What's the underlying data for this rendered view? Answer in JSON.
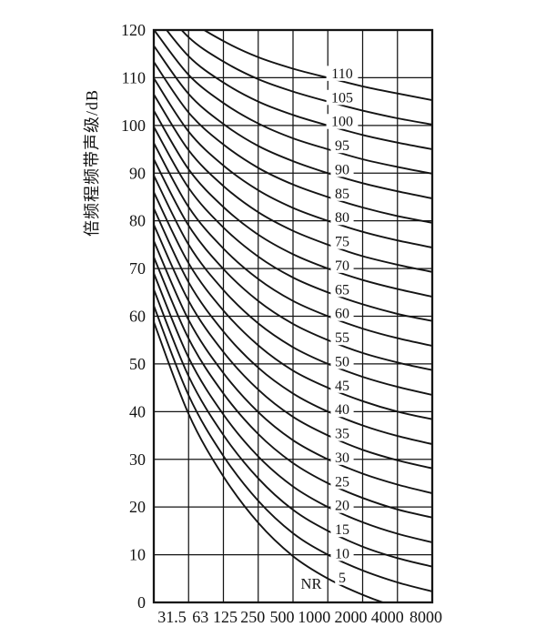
{
  "figure": {
    "background": "#ffffff",
    "ink_color": "#141414"
  },
  "chart_data": {
    "type": "line",
    "title": "",
    "ylabel": "倍频程频带声级/dB",
    "xlabel": "",
    "curve_family": "NR (noise rating) curves",
    "nr_prefix_label": "NR",
    "x_values_hz": [
      31.5,
      63,
      125,
      250,
      500,
      1000,
      2000,
      4000,
      8000
    ],
    "x_tick_labels": [
      "31.5",
      "63",
      "125",
      "250",
      "500",
      "1000",
      "2000",
      "4000",
      "8000"
    ],
    "y_ticks": [
      "0",
      "10",
      "20",
      "30",
      "40",
      "50",
      "60",
      "70",
      "80",
      "90",
      "100",
      "110",
      "120"
    ],
    "ylim": [
      0,
      120
    ],
    "grid": true,
    "legend_position": "labels-on-curves (between 1000 and 2000 Hz)",
    "series": [
      {
        "name": "NR 5",
        "label": "5",
        "values": [
          58.8,
          39.5,
          26.4,
          16.7,
          9.7,
          5.0,
          1.6,
          -1.0,
          -2.9
        ]
      },
      {
        "name": "NR 10",
        "label": "10",
        "values": [
          62.2,
          43.4,
          30.7,
          21.3,
          14.5,
          10.0,
          6.7,
          4.2,
          2.3
        ]
      },
      {
        "name": "NR 15",
        "label": "15",
        "values": [
          65.6,
          47.4,
          35.1,
          26.0,
          19.4,
          15.0,
          11.7,
          9.3,
          7.5
        ]
      },
      {
        "name": "NR 20",
        "label": "20",
        "values": [
          69.0,
          51.3,
          39.4,
          30.6,
          24.3,
          20.0,
          16.8,
          14.4,
          12.6
        ]
      },
      {
        "name": "NR 25",
        "label": "25",
        "values": [
          72.4,
          55.3,
          43.8,
          35.3,
          29.2,
          25.0,
          21.9,
          19.5,
          17.8
        ]
      },
      {
        "name": "NR 30",
        "label": "30",
        "values": [
          75.8,
          59.2,
          48.1,
          39.9,
          34.0,
          30.0,
          27.0,
          24.7,
          22.9
        ]
      },
      {
        "name": "NR 35",
        "label": "35",
        "values": [
          79.2,
          63.2,
          52.5,
          44.6,
          38.9,
          35.0,
          32.0,
          29.8,
          28.1
        ]
      },
      {
        "name": "NR 40",
        "label": "40",
        "values": [
          82.6,
          67.1,
          56.8,
          49.2,
          43.8,
          40.0,
          37.1,
          34.9,
          33.2
        ]
      },
      {
        "name": "NR 45",
        "label": "45",
        "values": [
          86.0,
          71.1,
          61.2,
          53.9,
          48.6,
          45.0,
          42.2,
          40.0,
          38.4
        ]
      },
      {
        "name": "NR 50",
        "label": "50",
        "values": [
          89.5,
          75.0,
          65.5,
          58.5,
          53.5,
          50.0,
          47.3,
          45.2,
          43.5
        ]
      },
      {
        "name": "NR 55",
        "label": "55",
        "values": [
          92.9,
          79.0,
          69.9,
          63.2,
          58.4,
          55.0,
          52.3,
          50.3,
          48.7
        ]
      },
      {
        "name": "NR 60",
        "label": "60",
        "values": [
          96.3,
          82.9,
          74.2,
          67.8,
          63.2,
          60.0,
          57.4,
          55.4,
          53.8
        ]
      },
      {
        "name": "NR 65",
        "label": "65",
        "values": [
          99.7,
          86.9,
          78.6,
          72.5,
          68.1,
          65.0,
          62.5,
          60.5,
          59.0
        ]
      },
      {
        "name": "NR 70",
        "label": "70",
        "values": [
          103.1,
          90.8,
          82.9,
          77.1,
          73.0,
          70.0,
          67.6,
          65.7,
          64.1
        ]
      },
      {
        "name": "NR 75",
        "label": "75",
        "values": [
          106.5,
          94.8,
          87.3,
          81.8,
          77.9,
          75.0,
          72.6,
          70.8,
          69.3
        ]
      },
      {
        "name": "NR 80",
        "label": "80",
        "values": [
          109.9,
          98.7,
          91.6,
          86.4,
          82.7,
          80.0,
          77.7,
          75.9,
          74.4
        ]
      },
      {
        "name": "NR 85",
        "label": "85",
        "values": [
          113.3,
          102.7,
          96.0,
          91.1,
          87.6,
          85.0,
          82.8,
          81.0,
          79.6
        ]
      },
      {
        "name": "NR 90",
        "label": "90",
        "values": [
          116.7,
          106.6,
          100.3,
          95.7,
          92.5,
          90.0,
          87.9,
          86.2,
          84.7
        ]
      },
      {
        "name": "NR 95",
        "label": "95",
        "values": [
          120.1,
          110.6,
          104.7,
          100.4,
          97.3,
          95.0,
          92.9,
          91.3,
          89.9
        ]
      },
      {
        "name": "NR 100",
        "label": "100",
        "values": [
          123.5,
          114.5,
          109.0,
          105.0,
          102.2,
          100.0,
          98.0,
          96.4,
          95.0
        ]
      },
      {
        "name": "NR 105",
        "label": "105",
        "values": [
          126.9,
          118.5,
          113.4,
          109.7,
          107.1,
          105.0,
          103.1,
          101.5,
          100.2
        ]
      },
      {
        "name": "NR 110",
        "label": "110",
        "values": [
          130.3,
          122.4,
          117.7,
          114.3,
          111.9,
          110.0,
          108.2,
          106.7,
          105.3
        ]
      }
    ]
  }
}
